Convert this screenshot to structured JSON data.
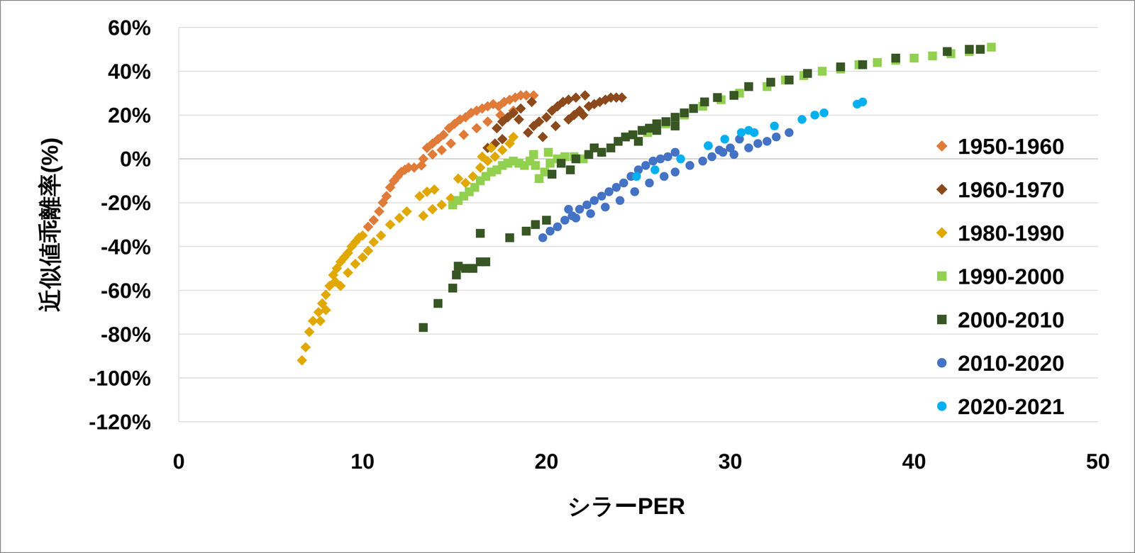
{
  "chart_data": {
    "type": "scatter",
    "x_label": "シラーPER",
    "y_label": "近似値乖離率(%)",
    "xlim": [
      0,
      50
    ],
    "xticks": [
      0,
      10,
      20,
      30,
      40,
      50
    ],
    "ylim": [
      -120,
      60
    ],
    "yticks": [
      {
        "value": -120,
        "label": "-120%"
      },
      {
        "value": -100,
        "label": "-100%"
      },
      {
        "value": -80,
        "label": "-80%"
      },
      {
        "value": -60,
        "label": "-60%"
      },
      {
        "value": -40,
        "label": "-40%"
      },
      {
        "value": -20,
        "label": "-20%"
      },
      {
        "value": 0,
        "label": "0%"
      },
      {
        "value": 20,
        "label": "20%"
      },
      {
        "value": 40,
        "label": "40%"
      },
      {
        "value": 60,
        "label": "60%"
      }
    ],
    "grid": true,
    "legend": "right",
    "series": [
      {
        "name": "1950-1960",
        "color": "#e07b39",
        "marker": "diamond",
        "x": [
          10.3,
          10.6,
          10.9,
          11.1,
          11.3,
          11.5,
          11.7,
          11.9,
          12.1,
          12.3,
          12.5,
          12.8,
          13.2,
          13.5,
          13.8,
          14.1,
          14.4,
          14.7,
          15.0,
          15.3,
          15.6,
          15.9,
          16.2,
          16.5,
          16.8,
          17.1,
          17.4,
          17.7,
          18.0,
          18.3,
          18.6,
          18.9,
          19.3,
          13.3,
          13.8,
          14.3,
          14.8,
          15.5,
          16.2,
          16.8,
          17.5,
          18.2
        ],
        "values": [
          -31,
          -28,
          -24,
          -20,
          -17,
          -13,
          -10,
          -8,
          -6,
          -5,
          -4,
          -4,
          -3,
          5,
          7,
          9,
          11,
          14,
          16,
          18,
          19,
          21,
          22,
          23,
          24,
          25,
          24,
          26,
          27,
          28,
          29,
          29,
          29,
          0,
          2,
          4,
          7,
          11,
          14,
          17,
          20,
          22
        ]
      },
      {
        "name": "1960-1970",
        "color": "#8c4a1c",
        "marker": "diamond",
        "x": [
          16.8,
          17.2,
          17.6,
          17.3,
          17.6,
          17.9,
          18.2,
          18.6,
          19.0,
          19.3,
          19.6,
          19.8,
          20.0,
          20.3,
          20.6,
          20.9,
          21.2,
          21.5,
          21.8,
          21.2,
          21.6,
          22.1,
          22.3,
          22.6,
          22.9,
          23.2,
          23.5,
          23.8,
          24.1,
          18.5,
          19.2,
          20.5,
          22.0
        ],
        "values": [
          5,
          7,
          9,
          14,
          17,
          19,
          21,
          23,
          12,
          15,
          17,
          10,
          19,
          22,
          24,
          26,
          18,
          20,
          22,
          27,
          28,
          29,
          24,
          25,
          26,
          27,
          28,
          28,
          28,
          18,
          26,
          15,
          20
        ]
      },
      {
        "name": "1980-1990",
        "color": "#e0a800",
        "marker": "diamond",
        "x": [
          6.7,
          6.9,
          7.1,
          7.3,
          7.6,
          7.8,
          8.0,
          8.2,
          8.4,
          8.6,
          8.8,
          9.0,
          9.2,
          9.4,
          9.6,
          9.8,
          10.0,
          7.7,
          8.0,
          8.5,
          8.8,
          9.2,
          9.6,
          10.0,
          10.3,
          10.6,
          11.0,
          11.5,
          12.0,
          12.4,
          13.1,
          13.5,
          13.9,
          13.3,
          13.8,
          14.3,
          14.8,
          15.2,
          15.6,
          16.0,
          16.4,
          16.8,
          17.2,
          17.6,
          18.0,
          18.2,
          16.5,
          17.0
        ],
        "values": [
          -92,
          -86,
          -79,
          -74,
          -70,
          -66,
          -62,
          -58,
          -53,
          -50,
          -47,
          -45,
          -43,
          -40,
          -38,
          -36,
          -35,
          -74,
          -69,
          -56,
          -58,
          -52,
          -48,
          -45,
          -42,
          -38,
          -35,
          -30,
          -27,
          -24,
          -17,
          -15,
          -14,
          -26,
          -23,
          -21,
          -18,
          -9,
          -11,
          -8,
          -4,
          -1,
          1,
          4,
          7,
          10,
          1,
          5
        ]
      },
      {
        "name": "1990-2000",
        "color": "#92d050",
        "marker": "square",
        "x": [
          14.9,
          15.2,
          15.5,
          15.8,
          16.1,
          16.4,
          16.7,
          17.0,
          17.3,
          17.6,
          17.9,
          18.2,
          18.5,
          18.8,
          19.1,
          19.4,
          19.6,
          19.9,
          20.2,
          20.6,
          21.0,
          21.5,
          22.0,
          19.3,
          20.1,
          25.5,
          26.5,
          27.5,
          28.5,
          29.5,
          30.5,
          32.0,
          33.0,
          34.0,
          35.0,
          36.0,
          37.0,
          38.0,
          39.0,
          40.0,
          41.0,
          42.0,
          43.0,
          44.2
        ],
        "values": [
          -21,
          -19,
          -17,
          -15,
          -13,
          -10,
          -8,
          -6,
          -5,
          -3,
          -2,
          -1,
          -2,
          -3,
          -1,
          -3,
          -9,
          -6,
          -2,
          0,
          1,
          1,
          0,
          2,
          3,
          12,
          16,
          20,
          24,
          27,
          30,
          33,
          36,
          38,
          40,
          41,
          43,
          44,
          45,
          46,
          47,
          48,
          49,
          51
        ]
      },
      {
        "name": "2000-2010",
        "color": "#375623",
        "marker": "square",
        "x": [
          13.3,
          14.1,
          14.9,
          15.1,
          15.2,
          15.6,
          16.0,
          16.4,
          16.7,
          16.4,
          18.0,
          18.9,
          19.4,
          20.0,
          20.3,
          20.8,
          21.3,
          21.6,
          22.3,
          22.6,
          23.0,
          23.5,
          23.9,
          24.3,
          24.7,
          25.2,
          25.6,
          26.0,
          26.5,
          27.0,
          27.5,
          28.0,
          28.6,
          29.3,
          30.2,
          31.0,
          32.2,
          33.2,
          34.2,
          36.0,
          37.2,
          39.0,
          41.8,
          43.0,
          43.6,
          25.0,
          26.0,
          27.0
        ],
        "values": [
          -77,
          -66,
          -59,
          -53,
          -49,
          -50,
          -50,
          -47,
          -47,
          -34,
          -36,
          -33,
          -30,
          -28,
          -7,
          -2,
          -5,
          0,
          2,
          5,
          3,
          5,
          8,
          10,
          11,
          13,
          14,
          16,
          17,
          19,
          21,
          23,
          26,
          28,
          29,
          33,
          35,
          36,
          39,
          42,
          43,
          46,
          49,
          50,
          50,
          8,
          13,
          15
        ]
      },
      {
        "name": "2010-2020",
        "color": "#4472c4",
        "marker": "circle",
        "x": [
          19.8,
          20.2,
          20.6,
          21.0,
          21.4,
          21.8,
          22.2,
          22.6,
          23.0,
          23.4,
          23.8,
          24.2,
          24.6,
          25.0,
          25.4,
          25.8,
          26.2,
          26.6,
          27.0,
          21.2,
          21.6,
          22.4,
          23.2,
          24.0,
          24.8,
          25.6,
          26.4,
          27.0,
          27.8,
          28.5,
          29.0,
          29.6,
          30.0,
          30.5,
          31.0,
          31.5,
          32.0,
          32.5,
          33.2,
          28.8,
          29.4,
          30.2
        ],
        "values": [
          -36,
          -33,
          -31,
          -28,
          -26,
          -23,
          -21,
          -19,
          -17,
          -15,
          -13,
          -11,
          -8,
          -5,
          -3,
          -1,
          0,
          1,
          3,
          -23,
          -27,
          -25,
          -22,
          -19,
          -15,
          -11,
          -8,
          -6,
          -3,
          -1,
          1,
          3,
          5,
          9,
          5,
          7,
          8,
          10,
          12,
          6,
          4,
          2
        ]
      },
      {
        "name": "2020-2021",
        "color": "#00b0f0",
        "marker": "circle",
        "x": [
          24.9,
          25.9,
          27.3,
          28.8,
          29.7,
          30.6,
          31.0,
          31.3,
          32.4,
          33.9,
          34.6,
          35.1,
          36.9,
          37.2
        ],
        "values": [
          -8,
          -5,
          0,
          6,
          9,
          12,
          13,
          12,
          15,
          18,
          20,
          21,
          25,
          26
        ]
      }
    ]
  }
}
